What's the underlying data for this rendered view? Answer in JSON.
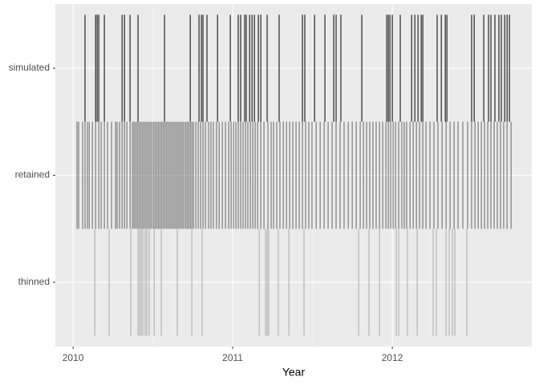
{
  "chart_data": {
    "type": "event",
    "x_label": "Year",
    "categories": [
      "simulated",
      "retained",
      "thinned"
    ],
    "colors": [
      "#000000",
      "#666666",
      "#aaaaaa"
    ],
    "xlim": [
      2009.889,
      2012.874
    ],
    "xticks": [
      2010,
      2011,
      2012
    ],
    "xminor": [
      2010.5,
      2011.5,
      2012.5
    ],
    "grid": true,
    "values": [
      [
        2010.075,
        2010.141,
        2010.151,
        2010.161,
        2010.196,
        2010.307,
        2010.322,
        2010.357,
        2010.407,
        2010.573,
        2010.734,
        2010.789,
        2010.804,
        2010.814,
        2010.839,
        2010.905,
        2010.985,
        2011.035,
        2011.05,
        2011.075,
        2011.085,
        2011.106,
        2011.121,
        2011.136,
        2011.161,
        2011.176,
        2011.216,
        2011.291,
        2011.437,
        2011.452,
        2011.513,
        2011.578,
        2011.633,
        2011.648,
        2011.678,
        2011.809,
        2011.965,
        2011.975,
        2011.985,
        2012.0,
        2012.05,
        2012.121,
        2012.141,
        2012.161,
        2012.181,
        2012.191,
        2012.281,
        2012.307,
        2012.332,
        2012.342,
        2012.497,
        2012.513,
        2012.573,
        2012.603,
        2012.618,
        2012.643,
        2012.668,
        2012.683,
        2012.704,
        2012.719,
        2012.734
      ],
      [
        2010.025,
        2010.035,
        2010.06,
        2010.075,
        2010.09,
        2010.101,
        2010.121,
        2010.141,
        2010.161,
        2010.176,
        2010.196,
        2010.216,
        2010.241,
        2010.266,
        2010.276,
        2010.291,
        2010.307,
        2010.322,
        2010.337,
        2010.357,
        2010.372,
        2010.382,
        2010.392,
        2010.402,
        2010.412,
        2010.422,
        2010.432,
        2010.442,
        2010.452,
        2010.462,
        2010.472,
        2010.482,
        2010.492,
        2010.503,
        2010.513,
        2010.523,
        2010.533,
        2010.543,
        2010.553,
        2010.563,
        2010.573,
        2010.583,
        2010.593,
        2010.603,
        2010.613,
        2010.623,
        2010.633,
        2010.643,
        2010.653,
        2010.663,
        2010.673,
        2010.683,
        2010.693,
        2010.704,
        2010.714,
        2010.724,
        2010.734,
        2010.744,
        2010.754,
        2010.769,
        2010.784,
        2010.799,
        2010.814,
        2010.829,
        2010.849,
        2010.864,
        2010.879,
        2010.899,
        2010.915,
        2010.935,
        2010.955,
        2010.975,
        2010.99,
        2011.005,
        2011.02,
        2011.035,
        2011.05,
        2011.065,
        2011.08,
        2011.095,
        2011.111,
        2011.126,
        2011.141,
        2011.156,
        2011.176,
        2011.196,
        2011.221,
        2011.241,
        2011.256,
        2011.276,
        2011.296,
        2011.317,
        2011.337,
        2011.357,
        2011.377,
        2011.397,
        2011.417,
        2011.437,
        2011.457,
        2011.477,
        2011.497,
        2011.523,
        2011.548,
        2011.573,
        2011.598,
        2011.623,
        2011.648,
        2011.673,
        2011.698,
        2011.724,
        2011.749,
        2011.774,
        2011.799,
        2011.819,
        2011.839,
        2011.859,
        2011.879,
        2011.899,
        2011.92,
        2011.94,
        2011.96,
        2011.975,
        2011.99,
        2012.005,
        2012.02,
        2012.04,
        2012.06,
        2012.075,
        2012.09,
        2012.111,
        2012.131,
        2012.151,
        2012.171,
        2012.191,
        2012.211,
        2012.236,
        2012.261,
        2012.286,
        2012.312,
        2012.337,
        2012.362,
        2012.387,
        2012.412,
        2012.442,
        2012.472,
        2012.497,
        2012.518,
        2012.538,
        2012.558,
        2012.578,
        2012.598,
        2012.618,
        2012.638,
        2012.658,
        2012.678,
        2012.698,
        2012.719,
        2012.744
      ],
      [
        2010.136,
        2010.226,
        2010.362,
        2010.407,
        2010.417,
        2010.427,
        2010.437,
        2010.452,
        2010.462,
        2010.477,
        2010.508,
        2010.553,
        2010.653,
        2010.744,
        2010.809,
        2011.166,
        2011.206,
        2011.216,
        2011.226,
        2011.286,
        2011.352,
        2011.447,
        2011.789,
        2011.854,
        2011.92,
        2012.025,
        2012.04,
        2012.095,
        2012.156,
        2012.256,
        2012.276,
        2012.337,
        2012.357,
        2012.377,
        2012.392,
        2012.467
      ]
    ]
  }
}
